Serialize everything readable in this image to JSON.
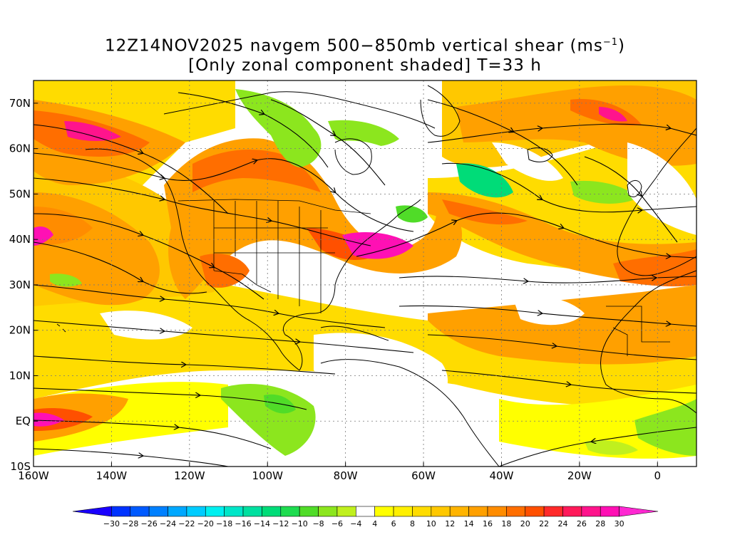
{
  "title": {
    "line1_prefix": "12Z14NOV2025 navgem 500−850mb vertical shear (ms",
    "line1_sup": "−1",
    "line1_suffix": ")",
    "line2": "[Only zonal component shaded] T=33 h"
  },
  "map": {
    "lon_range": [
      -160,
      10
    ],
    "lat_range": [
      -10,
      75
    ],
    "xticks": [
      {
        "lon": -160,
        "label": "160W"
      },
      {
        "lon": -140,
        "label": "140W"
      },
      {
        "lon": -120,
        "label": "120W"
      },
      {
        "lon": -100,
        "label": "100W"
      },
      {
        "lon": -80,
        "label": "80W"
      },
      {
        "lon": -60,
        "label": "60W"
      },
      {
        "lon": -40,
        "label": "40W"
      },
      {
        "lon": -20,
        "label": "20W"
      },
      {
        "lon": 0,
        "label": "0"
      }
    ],
    "yticks": [
      {
        "lat": 70,
        "label": "70N"
      },
      {
        "lat": 60,
        "label": "60N"
      },
      {
        "lat": 50,
        "label": "50N"
      },
      {
        "lat": 40,
        "label": "40N"
      },
      {
        "lat": 30,
        "label": "30N"
      },
      {
        "lat": 20,
        "label": "20N"
      },
      {
        "lat": 10,
        "label": "10N"
      },
      {
        "lat": 0,
        "label": "EQ"
      },
      {
        "lat": -10,
        "label": "10S"
      }
    ],
    "grid": true
  },
  "colorbar": {
    "labels": [
      "−30",
      "−28",
      "−26",
      "−24",
      "−22",
      "−20",
      "−18",
      "−16",
      "−14",
      "−12",
      "−10",
      "−8",
      "−6",
      "−4",
      "4",
      "6",
      "8",
      "10",
      "12",
      "14",
      "16",
      "18",
      "20",
      "22",
      "24",
      "26",
      "28",
      "30"
    ],
    "colors": [
      "#1a00ff",
      "#0033ff",
      "#005aff",
      "#0080ff",
      "#00a8ff",
      "#00ccff",
      "#00f0f0",
      "#00e6c8",
      "#00e0a0",
      "#00dc78",
      "#1edc50",
      "#50dc28",
      "#8ce61e",
      "#c0f01e",
      "#ffffff",
      "#ffff00",
      "#fff000",
      "#ffdc00",
      "#ffc800",
      "#ffb400",
      "#ffa000",
      "#ff8c00",
      "#ff6e00",
      "#ff5000",
      "#ff2a2a",
      "#ff1a5a",
      "#ff148c",
      "#ff10b4",
      "#ff28d2"
    ]
  },
  "colors": {
    "white": "#ffffff",
    "weak_neg": "#c0f01e",
    "neg1": "#8ce61e",
    "neg2": "#50dc28",
    "neg3": "#00dc78",
    "y4": "#ffff00",
    "y6": "#fff000",
    "o8": "#ffdc00",
    "o10": "#ffc800",
    "o12": "#ffb400",
    "o14": "#ffa000",
    "o16": "#ff8c00",
    "r18": "#ff6e00",
    "r20": "#ff5000",
    "r22": "#ff2a2a",
    "m24": "#ff1a5a",
    "m26": "#ff148c",
    "m28": "#ff10b4",
    "m30": "#ff28d2"
  }
}
